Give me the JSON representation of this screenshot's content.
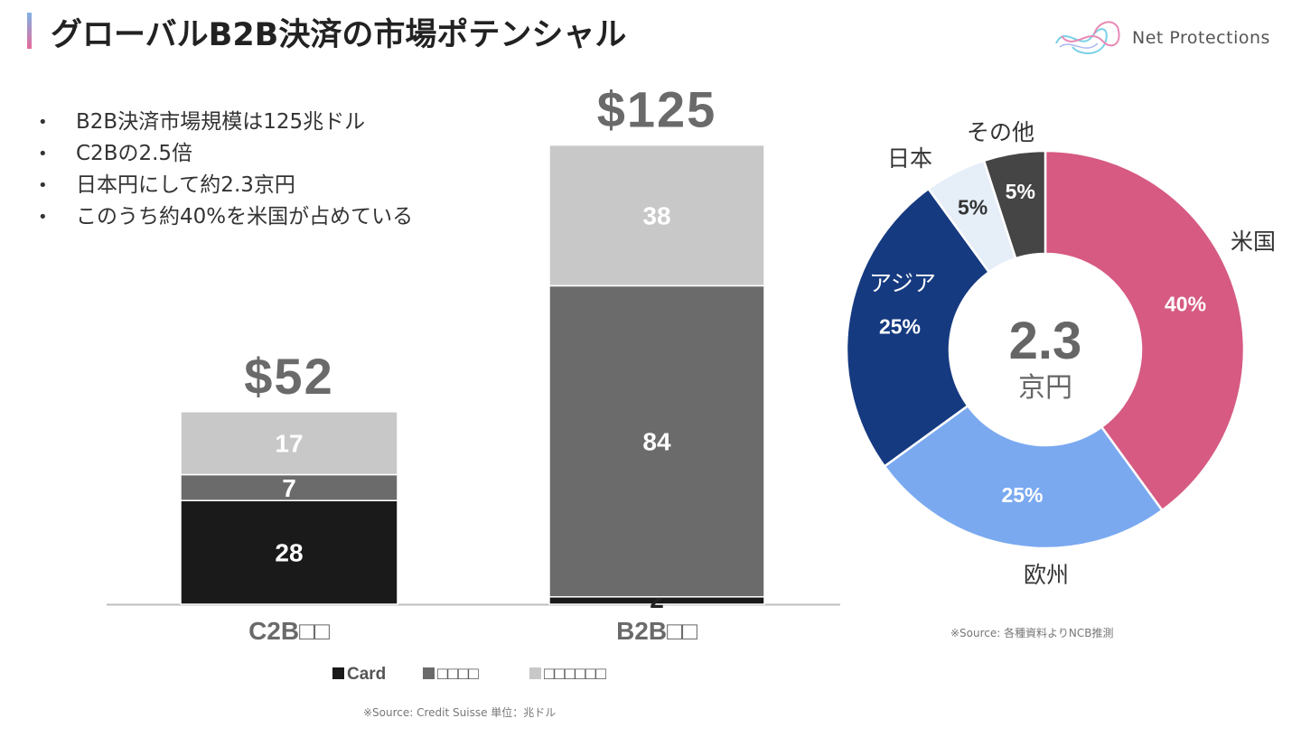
{
  "header": {
    "title": "グローバルB2B決済の市場ポテンシャル",
    "logo_text": "Net Protections"
  },
  "bullets": [
    "B2B決済市場規模は125兆ドル",
    "C2Bの2.5倍",
    "日本円にして約2.3京円",
    "このうち約40%を米国が占めている"
  ],
  "footnotes": {
    "bar_source": "※Source: Credit Suisse 単位：兆ドル",
    "pie_source": "※Source: 各種資料よりNCB推測"
  },
  "chart_data": [
    {
      "type": "bar",
      "stacked": true,
      "categories": [
        "C2B□□",
        "B2B□□"
      ],
      "totals": [
        52,
        125
      ],
      "total_labels": [
        "$52",
        "$125"
      ],
      "series": [
        {
          "name": "Card",
          "values": [
            28,
            2
          ],
          "color": "#1a1a1a",
          "label_color": "#ffffff"
        },
        {
          "name": "□□□□",
          "values": [
            7,
            84
          ],
          "color": "#6b6b6b",
          "label_color": "#ffffff"
        },
        {
          "name": "□□□□□□",
          "values": [
            17,
            38
          ],
          "color": "#c8c8c8",
          "label_color": "#ffffff"
        }
      ],
      "ylim": [
        0,
        128
      ],
      "legend": "bottom"
    },
    {
      "type": "pie",
      "donut": true,
      "center_value": "2.3",
      "center_unit": "京円",
      "slices": [
        {
          "name": "米国",
          "value": 40,
          "label": "40%",
          "color": "#d65a82"
        },
        {
          "name": "欧州",
          "value": 25,
          "label": "25%",
          "color": "#7aa9f0"
        },
        {
          "name": "アジア",
          "value": 25,
          "label": "25%",
          "color": "#163a80"
        },
        {
          "name": "日本",
          "value": 5,
          "label": "5%",
          "color": "#e6eef8"
        },
        {
          "name": "その他",
          "value": 5,
          "label": "5%",
          "color": "#454545"
        }
      ]
    }
  ]
}
